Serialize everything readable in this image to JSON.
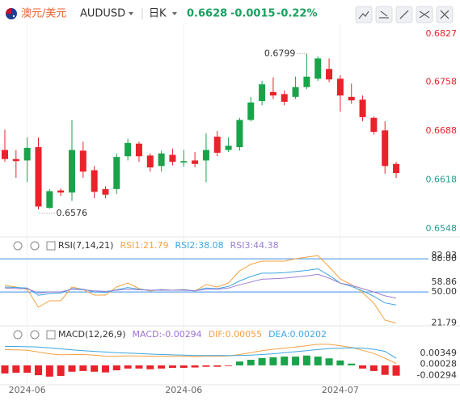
{
  "header": {
    "pair": "澳元/美元",
    "symbol": "AUDUSD",
    "period": "日K",
    "price": "0.6628",
    "change": "-0.0015",
    "change_percent": "-0.22%"
  },
  "chart_data": [
    {
      "type": "candlestick",
      "categories": [
        null,
        null,
        "2024-06",
        null,
        null,
        null,
        null,
        null,
        null,
        null,
        null,
        null,
        null,
        null,
        null,
        null,
        "2024-06",
        null,
        null,
        null,
        null,
        null,
        null,
        null,
        null,
        null,
        null,
        null,
        null,
        null,
        "2024-07",
        null,
        null,
        null,
        null,
        null
      ],
      "open": [
        0.6661,
        0.6648,
        0.6646,
        0.6665,
        0.6578,
        0.6603,
        0.66,
        0.666,
        0.6632,
        0.6605,
        0.6605,
        0.6652,
        0.667,
        0.6653,
        0.6638,
        0.6654,
        0.6643,
        0.6646,
        0.6646,
        0.668,
        0.6661,
        0.6665,
        0.6704,
        0.6731,
        0.6744,
        0.6741,
        0.6737,
        0.6751,
        0.6763,
        0.6777,
        0.6763,
        0.6737,
        0.6733,
        0.6707,
        0.6689,
        0.6641
      ],
      "high": [
        0.669,
        0.6661,
        0.6679,
        0.6679,
        0.6605,
        0.6606,
        0.6704,
        0.6673,
        0.6638,
        0.6609,
        0.6656,
        0.6677,
        0.6673,
        0.6656,
        0.666,
        0.6663,
        0.6661,
        0.6658,
        0.6685,
        0.6688,
        0.6679,
        0.6707,
        0.6737,
        0.676,
        0.6765,
        0.6746,
        0.6766,
        0.6799,
        0.6795,
        0.6792,
        0.6768,
        0.6756,
        0.6739,
        0.6709,
        0.6702,
        0.6644
      ],
      "low": [
        0.6644,
        0.6621,
        0.6615,
        0.6576,
        0.6577,
        0.6595,
        0.6588,
        0.6621,
        0.6592,
        0.6592,
        0.6598,
        0.6646,
        0.6644,
        0.663,
        0.663,
        0.6639,
        0.6637,
        0.6636,
        0.6615,
        0.6652,
        0.6658,
        0.666,
        0.6702,
        0.6725,
        0.6734,
        0.6725,
        0.6734,
        0.6748,
        0.676,
        0.6758,
        0.6716,
        0.6727,
        0.6702,
        0.6683,
        0.6627,
        0.6621
      ],
      "close": [
        0.6648,
        0.6645,
        0.6664,
        0.658,
        0.6602,
        0.66,
        0.6661,
        0.663,
        0.6601,
        0.6597,
        0.6651,
        0.6671,
        0.6652,
        0.6636,
        0.6656,
        0.6644,
        0.6645,
        0.6641,
        0.6661,
        0.6657,
        0.6667,
        0.6704,
        0.6729,
        0.6755,
        0.6739,
        0.673,
        0.6751,
        0.6766,
        0.6792,
        0.6762,
        0.6739,
        0.6732,
        0.6708,
        0.6687,
        0.6638,
        0.6628
      ],
      "up_color": "#1aa34a",
      "down_color": "#e8232b",
      "ylim": [
        0.654,
        0.6841
      ],
      "yticks": [
        0.6827,
        0.6758,
        0.6688,
        0.6618,
        0.6548
      ]
    },
    {
      "type": "line",
      "title": "RSI(7,14,21)",
      "series": [
        {
          "name": "RSI1:21.79",
          "color": "#f5a142",
          "values": [
            55.9,
            54.5,
            52.3,
            36.1,
            42.0,
            42.0,
            54.5,
            52.3,
            47.1,
            47.1,
            54.5,
            58.1,
            53.0,
            50.8,
            52.3,
            51.5,
            52.3,
            50.8,
            56.7,
            54.5,
            58.1,
            69.1,
            75.0,
            77.9,
            77.9,
            77.9,
            80.1,
            81.6,
            82.93,
            72.8,
            61.8,
            56.7,
            49.3,
            39.8,
            24.4,
            21.79
          ]
        },
        {
          "name": "RSI2:38.08",
          "color": "#3ea6e0",
          "values": [
            54.5,
            54.0,
            53.5,
            47.0,
            48.5,
            49.0,
            53.0,
            52.5,
            50.0,
            49.5,
            52.0,
            54.0,
            52.5,
            51.5,
            52.0,
            51.5,
            52.0,
            51.0,
            53.5,
            53.0,
            55.0,
            60.0,
            64.0,
            67.0,
            67.0,
            67.5,
            68.5,
            69.5,
            71.0,
            65.0,
            58.0,
            55.0,
            51.0,
            46.0,
            40.0,
            38.08
          ]
        },
        {
          "name": "RSI3:44.38",
          "color": "#9b7fd4",
          "values": [
            53.5,
            53.0,
            53.0,
            49.0,
            50.0,
            50.0,
            52.5,
            52.0,
            51.0,
            50.5,
            51.5,
            52.5,
            52.0,
            51.5,
            51.5,
            51.5,
            51.5,
            51.0,
            52.5,
            52.5,
            53.5,
            56.5,
            59.0,
            61.5,
            62.0,
            62.5,
            63.5,
            64.5,
            66.0,
            62.5,
            58.0,
            56.0,
            53.0,
            50.0,
            46.5,
            44.38
          ]
        }
      ],
      "ylim": [
        20,
        86
      ],
      "yticks": [
        {
          "value": 80,
          "label": "80.00"
        },
        82.93,
        {
          "value": 50,
          "label": "50.00"
        },
        58.86,
        21.79
      ],
      "reference_lines": [
        80,
        50
      ],
      "reference_color": "#3a8ee6"
    },
    {
      "type": "macd",
      "title": "MACD(12,26,9)",
      "series": [
        {
          "name": "MACD:-0.00294",
          "color": "#9b6fd6",
          "values": [
            -0.0023,
            -0.0021,
            -0.0021,
            -0.0028,
            -0.0032,
            -0.003,
            -0.0018,
            -0.0016,
            -0.0018,
            -0.002,
            -0.0014,
            -0.0009,
            -0.0009,
            -0.0011,
            -0.0009,
            -0.0007,
            -0.0007,
            -0.0006,
            -0.0004,
            -0.0004,
            -0.0002,
            0.0011,
            0.0016,
            0.0021,
            0.0023,
            0.0025,
            0.0025,
            0.0028,
            0.0025,
            0.002,
            0.0014,
            0.0005,
            -0.0009,
            -0.0016,
            -0.0027,
            -0.00294
          ]
        },
        {
          "name": "DIF:0.00055",
          "color": "#f5a142",
          "values": [
            0.0045,
            0.0044,
            0.0043,
            0.0038,
            0.0033,
            0.003,
            0.0031,
            0.0031,
            0.0029,
            0.0026,
            0.0026,
            0.0027,
            0.0027,
            0.0026,
            0.0026,
            0.0026,
            0.0026,
            0.0025,
            0.0026,
            0.0026,
            0.0027,
            0.0031,
            0.0036,
            0.0042,
            0.0046,
            0.0049,
            0.0052,
            0.0056,
            0.006,
            0.006,
            0.0056,
            0.0051,
            0.0043,
            0.0034,
            0.002,
            0.00055
          ]
        },
        {
          "name": "DEA:0.00202",
          "color": "#3ea6e0",
          "values": [
            0.0054,
            0.0054,
            0.0053,
            0.0052,
            0.005,
            0.0047,
            0.0044,
            0.0042,
            0.004,
            0.0038,
            0.0036,
            0.0035,
            0.0034,
            0.0032,
            0.0031,
            0.003,
            0.0029,
            0.0028,
            0.0028,
            0.0028,
            0.0028,
            0.0028,
            0.0029,
            0.0031,
            0.0033,
            0.0036,
            0.0039,
            0.0042,
            0.0045,
            0.0048,
            0.0049,
            0.005,
            0.0049,
            0.0046,
            0.004,
            0.00202
          ]
        }
      ],
      "up_color": "#1aa34a",
      "down_color": "#e8232b",
      "ylim": [
        -0.006,
        0.0062
      ],
      "yticks": [
        0.00349,
        0.00028,
        -0.00294
      ]
    }
  ]
}
